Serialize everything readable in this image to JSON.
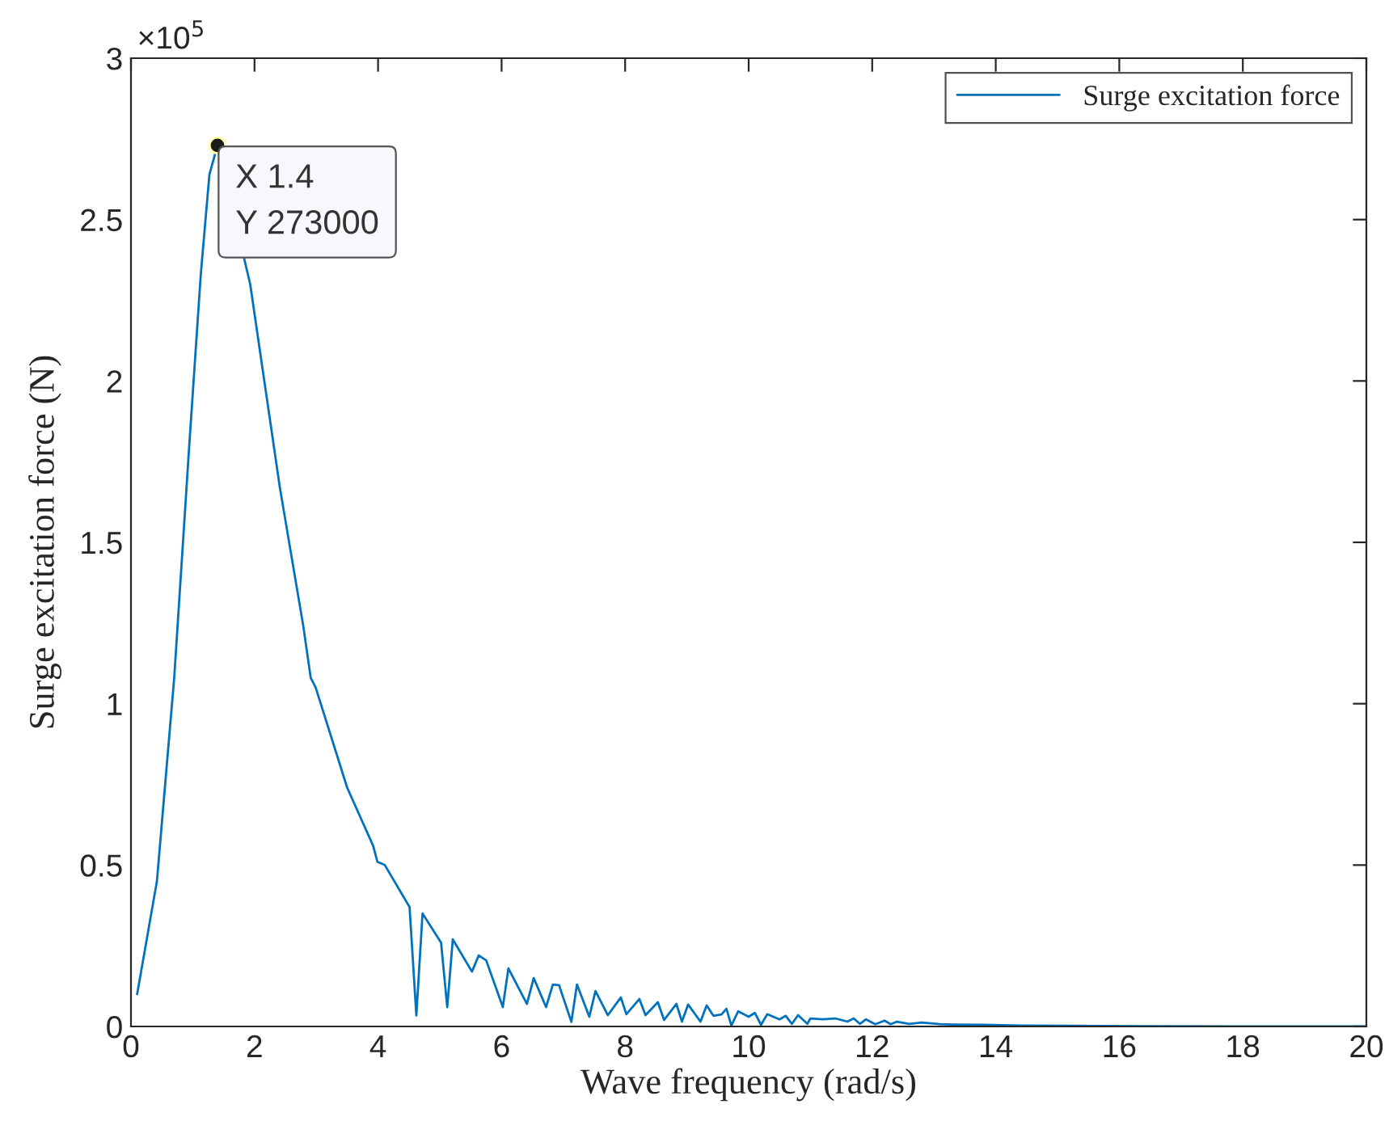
{
  "chart_data": {
    "type": "line",
    "xlabel": "Wave frequency (rad/s)",
    "ylabel": "Surge excitation force (N)",
    "xlim": [
      0,
      20
    ],
    "xticks": [
      0,
      2,
      4,
      6,
      8,
      10,
      12,
      14,
      16,
      18,
      20
    ],
    "ylim": [
      0,
      3
    ],
    "yticks": [
      0,
      0.5,
      1,
      1.5,
      2,
      2.5,
      3
    ],
    "legend": "top right",
    "grid": false,
    "annotations": [
      "×10$^{5}$",
      {
        "text": "X 1.4\nY 273000",
        "x": 1.4,
        "y": 2.73
      }
    ],
    "series": [
      {
        "name": "Surge excitation force",
        "color": "#0072bd",
        "x": [
          0.1,
          0.42,
          0.7,
          0.94,
          1.13,
          1.27,
          1.4,
          1.93,
          2.41,
          2.79,
          2.91,
          2.99,
          3.5,
          3.92,
          3.99,
          4.11,
          4.51,
          4.62,
          4.72,
          5.02,
          5.12,
          5.21,
          5.52,
          5.63,
          5.75,
          6.02,
          6.11,
          6.41,
          6.52,
          6.72,
          6.83,
          6.93,
          7.13,
          7.22,
          7.42,
          7.52,
          7.72,
          7.93,
          8.02,
          8.23,
          8.33,
          8.53,
          8.63,
          8.83,
          8.92,
          9.02,
          9.22,
          9.32,
          9.43,
          9.56,
          9.64,
          9.72,
          9.83,
          10.0,
          10.1,
          10.2,
          10.3,
          10.5,
          10.6,
          10.7,
          10.8,
          10.95,
          11.0,
          11.2,
          11.4,
          11.6,
          11.7,
          11.8,
          11.9,
          12.05,
          12.2,
          12.3,
          12.4,
          12.6,
          12.8,
          13.1,
          13.3,
          13.8,
          14.4,
          15.3,
          16.2,
          20
        ],
        "values": [
          0.1,
          0.45,
          1.08,
          1.79,
          2.33,
          2.64,
          2.73,
          2.3,
          1.67,
          1.24,
          1.08,
          1.05,
          0.74,
          0.56,
          0.51,
          0.5,
          0.37,
          0.034,
          0.35,
          0.26,
          0.06,
          0.27,
          0.17,
          0.22,
          0.205,
          0.06,
          0.18,
          0.07,
          0.15,
          0.06,
          0.13,
          0.128,
          0.014,
          0.13,
          0.03,
          0.11,
          0.035,
          0.09,
          0.038,
          0.085,
          0.035,
          0.075,
          0.02,
          0.07,
          0.015,
          0.068,
          0.015,
          0.065,
          0.033,
          0.037,
          0.055,
          0.003,
          0.047,
          0.03,
          0.042,
          0.005,
          0.038,
          0.022,
          0.033,
          0.008,
          0.035,
          0.008,
          0.025,
          0.022,
          0.025,
          0.015,
          0.025,
          0.008,
          0.022,
          0.007,
          0.018,
          0.007,
          0.015,
          0.008,
          0.012,
          0.007,
          0.006,
          0.005,
          0.003,
          0.002,
          0.001,
          0
        ]
      }
    ]
  }
}
